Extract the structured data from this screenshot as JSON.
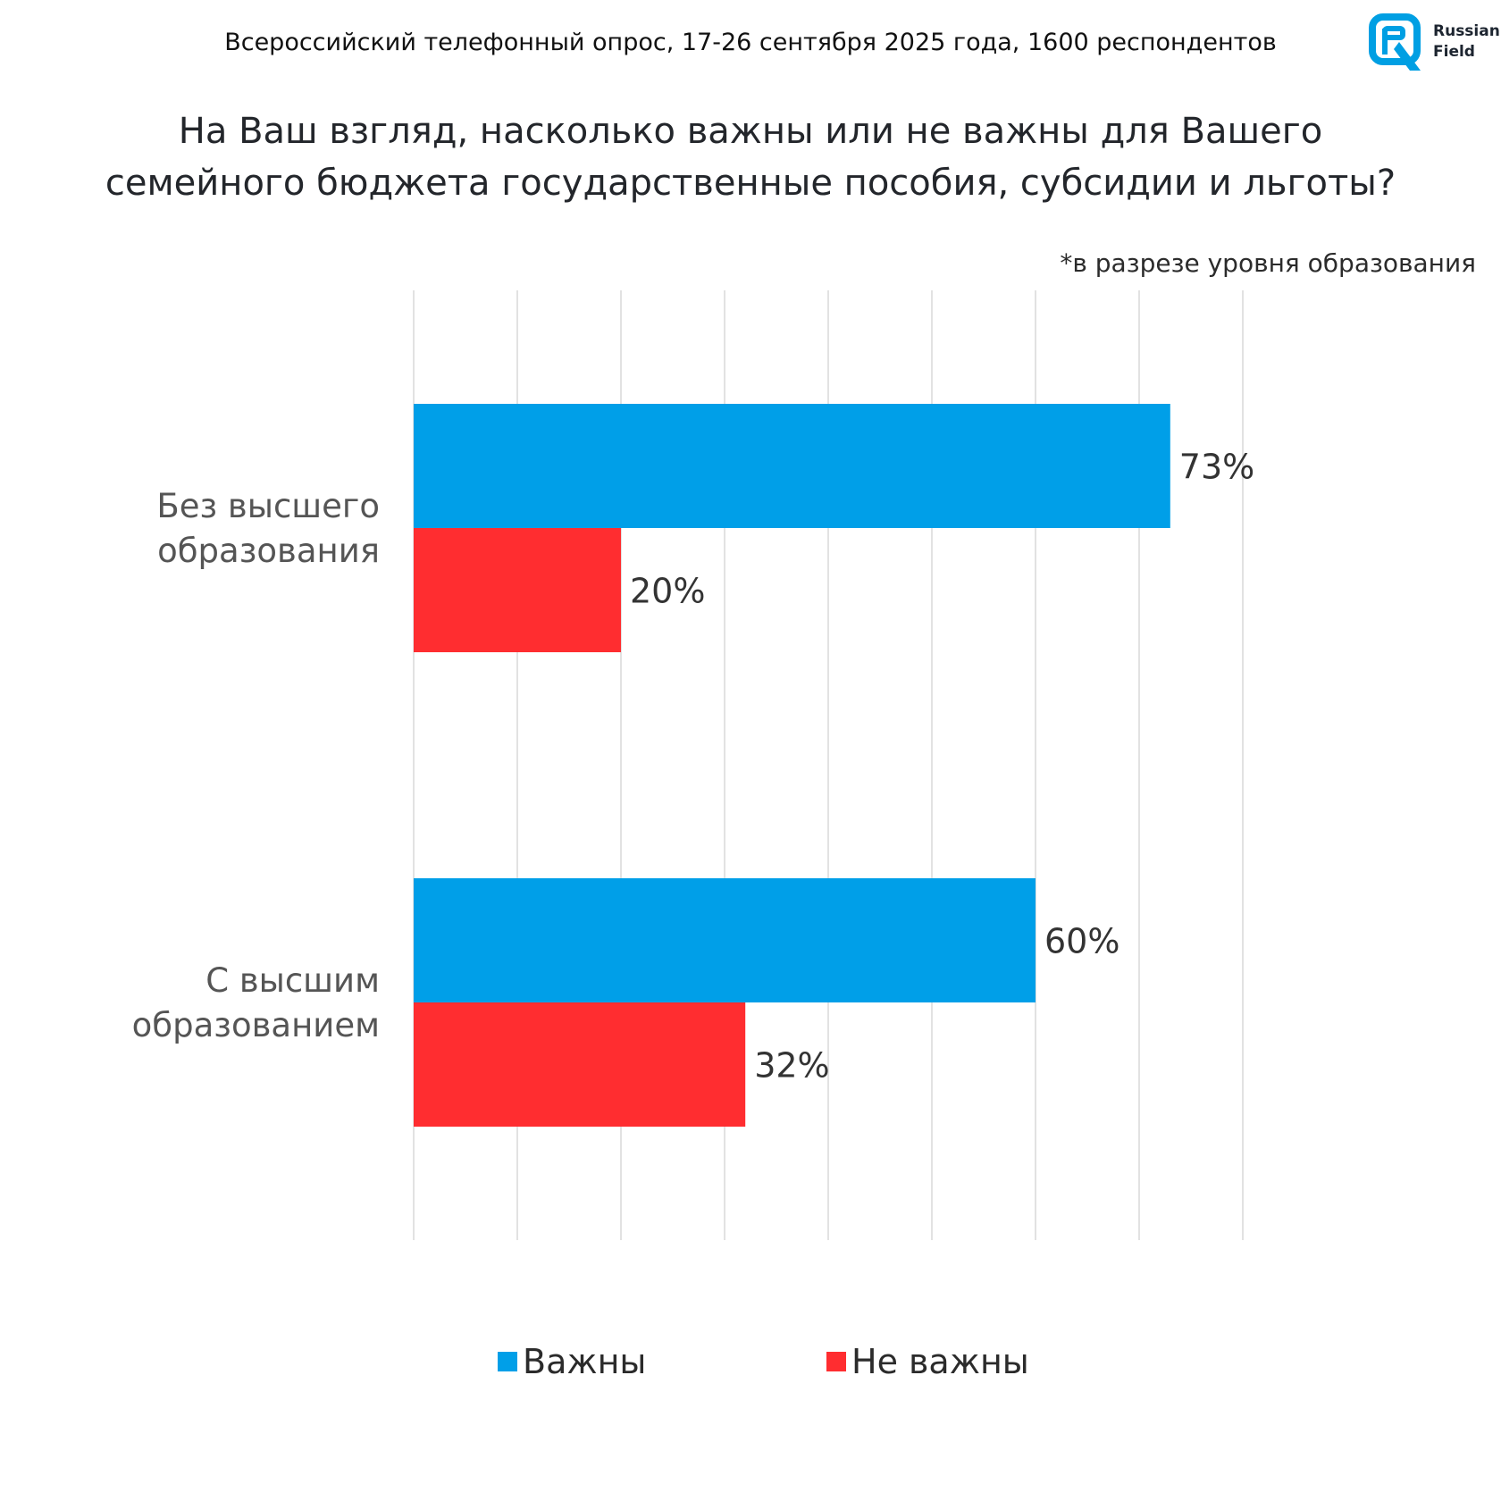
{
  "header": {
    "survey_info": "Всероссийский телефонный опрос, 17-26 сентября 2025 года, 1600 респондентов",
    "logo_line1": "Russian",
    "logo_line2": "Field",
    "logo_color": "#009FE3"
  },
  "title_line1": "На Ваш взгляд, насколько важны или не важны для Вашего",
  "title_line2": "семейного бюджета государственные пособия, субсидии и льготы?",
  "note": "*в разрезе уровня образования",
  "chart_data": {
    "type": "bar",
    "orientation": "horizontal",
    "categories": [
      [
        "Без высшего",
        "образования"
      ],
      [
        "С высшим",
        "образованием"
      ]
    ],
    "series": [
      {
        "name": "Важны",
        "color": "#009FE8",
        "values": [
          73,
          60
        ]
      },
      {
        "name": "Не важны",
        "color": "#FF2D30",
        "values": [
          20,
          32
        ]
      }
    ],
    "value_suffix": "%",
    "xlim": [
      0,
      80
    ],
    "grid_step": 10,
    "grid": true,
    "legend_position": "bottom"
  }
}
